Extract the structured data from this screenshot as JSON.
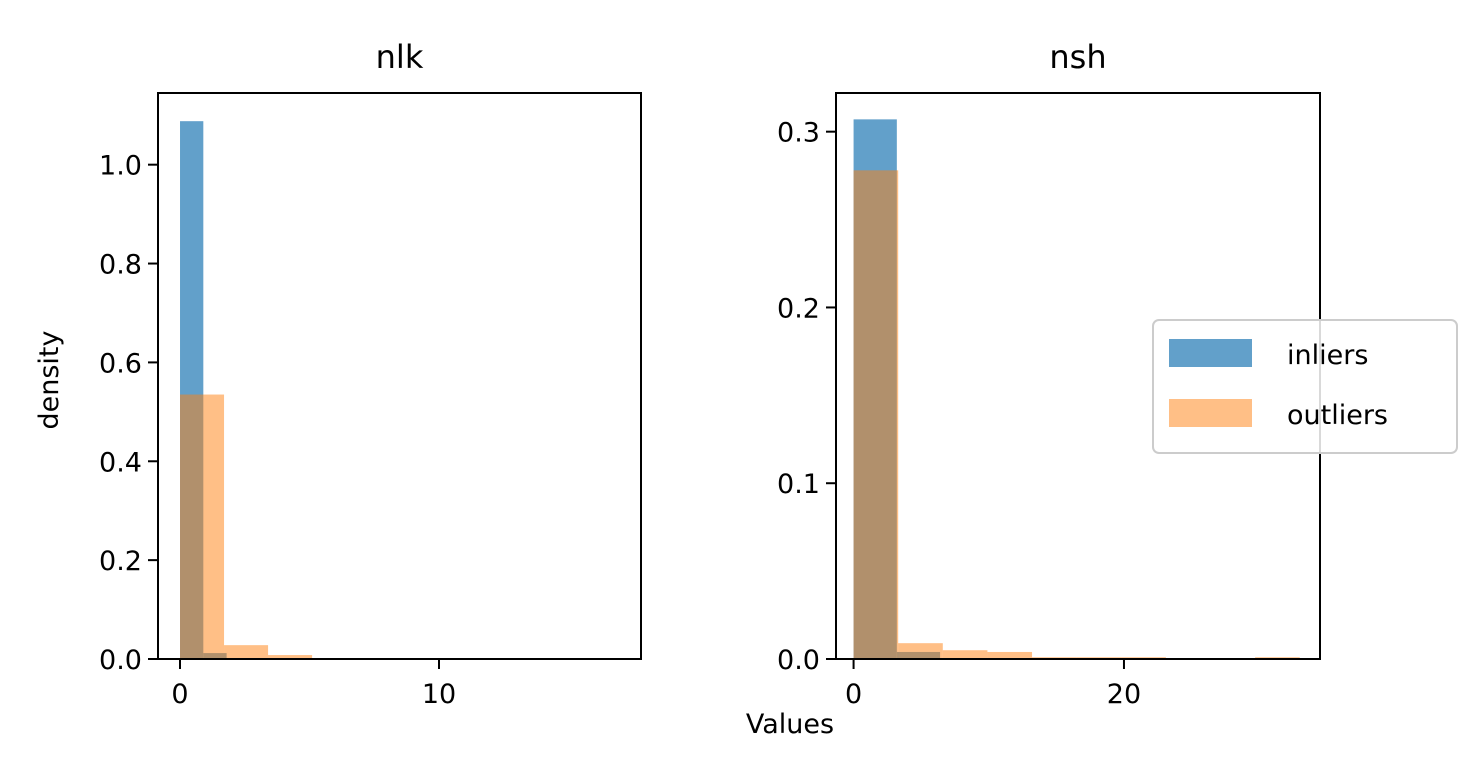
{
  "figure": {
    "xlabel": "Values",
    "ylabel": "density"
  },
  "legend": {
    "placement": "right",
    "entries": [
      {
        "label": "inliers",
        "color": "#1f77b4"
      },
      {
        "label": "outliers",
        "color": "#ff7f0e"
      }
    ]
  },
  "chart_data": [
    {
      "type": "bar",
      "title": "nlk",
      "xlim": [
        -0.85,
        17.8
      ],
      "ylim": [
        0,
        1.145
      ],
      "xticks": [
        0,
        10
      ],
      "yticks": [
        0.0,
        0.2,
        0.4,
        0.6,
        0.8,
        1.0
      ],
      "ytick_labels": [
        "0.0",
        "0.2",
        "0.4",
        "0.6",
        "0.8",
        "1.0"
      ],
      "series": [
        {
          "name": "inliers",
          "color": "#1f77b4",
          "bin_edges": [
            0,
            0.9,
            1.8
          ],
          "values": [
            1.088,
            0.012
          ]
        },
        {
          "name": "outliers",
          "color": "#ff7f0e",
          "bin_edges": [
            0,
            1.7,
            3.4,
            5.1,
            6.8,
            8.5,
            10.2,
            11.9,
            13.6,
            15.3,
            17.0
          ],
          "values": [
            0.535,
            0.028,
            0.008,
            0.0,
            0.002,
            0.0,
            0.0,
            0.0,
            0.0,
            0.0
          ]
        }
      ]
    },
    {
      "type": "bar",
      "title": "nsh",
      "xlim": [
        -1.3,
        34.5
      ],
      "ylim": [
        0,
        0.322
      ],
      "xticks": [
        0,
        20
      ],
      "yticks": [
        0.0,
        0.1,
        0.2,
        0.3
      ],
      "ytick_labels": [
        "0.0",
        "0.1",
        "0.2",
        "0.3"
      ],
      "series": [
        {
          "name": "inliers",
          "color": "#1f77b4",
          "bin_edges": [
            0,
            3.2,
            6.4
          ],
          "values": [
            0.307,
            0.004
          ]
        },
        {
          "name": "outliers",
          "color": "#ff7f0e",
          "bin_edges": [
            0,
            3.3,
            6.6,
            9.9,
            13.2,
            16.5,
            19.8,
            23.1,
            26.4,
            29.7,
            33.0
          ],
          "values": [
            0.278,
            0.009,
            0.005,
            0.004,
            0.001,
            0.001,
            0.001,
            0.0,
            0.0,
            0.001
          ]
        }
      ]
    }
  ]
}
